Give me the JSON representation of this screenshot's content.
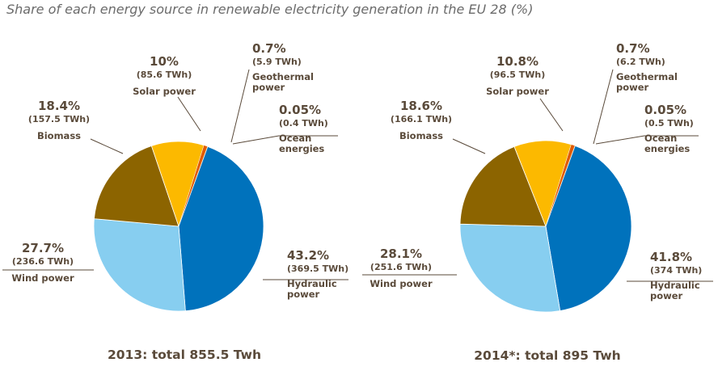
{
  "title": "Share of each energy source in renewable electricity generation in the EU 28 (%)",
  "colors": {
    "Hydraulic power": "#0072bc",
    "Wind power": "#87cef0",
    "Biomass": "#8c6400",
    "Solar power": "#fcb900",
    "Geothermal power": "#e05a00",
    "Ocean energies": "#b8860b",
    "text": "#5a4a3a",
    "leader": "#5a4a3a"
  },
  "chart_data": [
    {
      "type": "pie",
      "caption": "2013: total 855.5 Twh",
      "slices": [
        {
          "name": "Hydraulic power",
          "label": [
            "Hydraulic",
            "power"
          ],
          "pct": "43.2%",
          "twh": "(369.5 TWh)",
          "value": 43.2
        },
        {
          "name": "Wind power",
          "label": [
            "Wind power"
          ],
          "pct": "27.7%",
          "twh": "(236.6 TWh)",
          "value": 27.7
        },
        {
          "name": "Biomass",
          "label": [
            "Biomass"
          ],
          "pct": "18.4%",
          "twh": "(157.5 TWh)",
          "value": 18.4
        },
        {
          "name": "Solar power",
          "label": [
            "Solar power"
          ],
          "pct": "10%",
          "twh": "(85.6 TWh)",
          "value": 10.0
        },
        {
          "name": "Geothermal power",
          "label": [
            "Geothermal",
            "power"
          ],
          "pct": "0.7%",
          "twh": "(5.9 TWh)",
          "value": 0.7
        },
        {
          "name": "Ocean energies",
          "label": [
            "Ocean",
            "energies"
          ],
          "pct": "0.05%",
          "twh": "(0.4 TWh)",
          "value": 0.05
        }
      ]
    },
    {
      "type": "pie",
      "caption": "2014*: total 895 Twh",
      "slices": [
        {
          "name": "Hydraulic power",
          "label": [
            "Hydraulic",
            "power"
          ],
          "pct": "41.8%",
          "twh": "(374 TWh)",
          "value": 41.8
        },
        {
          "name": "Wind power",
          "label": [
            "Wind power"
          ],
          "pct": "28.1%",
          "twh": "(251.6 TWh)",
          "value": 28.1
        },
        {
          "name": "Biomass",
          "label": [
            "Biomass"
          ],
          "pct": "18.6%",
          "twh": "(166.1 TWh)",
          "value": 18.6
        },
        {
          "name": "Solar power",
          "label": [
            "Solar power"
          ],
          "pct": "10.8%",
          "twh": "(96.5 TWh)",
          "value": 10.8
        },
        {
          "name": "Geothermal power",
          "label": [
            "Geothermal",
            "power"
          ],
          "pct": "0.7%",
          "twh": "(6.2 TWh)",
          "value": 0.7
        },
        {
          "name": "Ocean energies",
          "label": [
            "Ocean",
            "energies"
          ],
          "pct": "0.05%",
          "twh": "(0.5 TWh)",
          "value": 0.05
        }
      ]
    }
  ]
}
